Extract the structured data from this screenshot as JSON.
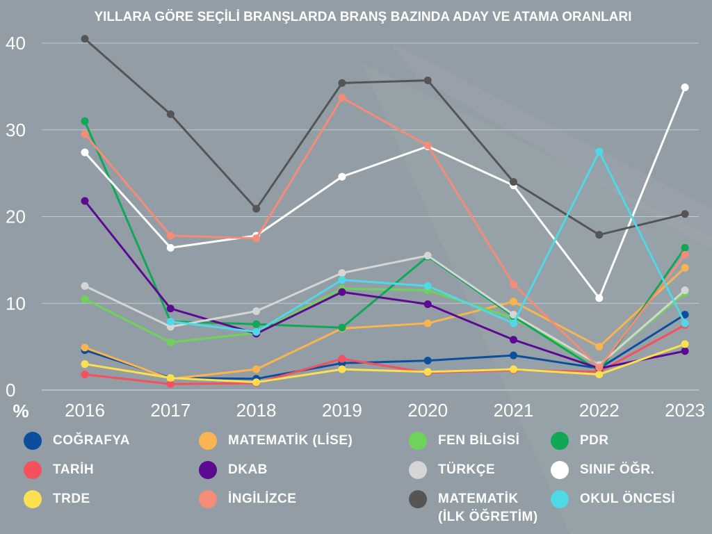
{
  "chart_data": {
    "type": "line",
    "title": "YILLARA GÖRE SEÇİLİ BRANŞLARDA BRANŞ BAZINDA ADAY VE ATAMA ORANLARI",
    "ylabel": "%",
    "xlabel": "",
    "x": [
      "2016",
      "2017",
      "2018",
      "2019",
      "2020",
      "2021",
      "2022",
      "2023"
    ],
    "ylim": [
      0,
      40
    ],
    "yticks": [
      0,
      10,
      20,
      30,
      40
    ],
    "grid": true,
    "legend_position": "bottom",
    "series": [
      {
        "name": "COĞRAFYA",
        "color": "#0b4f9c",
        "values": [
          4.6,
          1.4,
          1.3,
          3.1,
          3.4,
          4.0,
          2.5,
          8.7
        ]
      },
      {
        "name": "MATEMATİK (LİSE)",
        "color": "#f8b451",
        "values": [
          4.9,
          1.3,
          2.4,
          7.1,
          7.7,
          10.2,
          5.0,
          14.1
        ]
      },
      {
        "name": "FEN BİLGİSİ",
        "color": "#6fd35a",
        "values": [
          10.5,
          5.5,
          6.6,
          11.7,
          11.5,
          8.3,
          2.9,
          11.2
        ]
      },
      {
        "name": "PDR",
        "color": "#0ea856",
        "values": [
          31.0,
          7.9,
          7.6,
          7.2,
          15.4,
          8.5,
          2.2,
          16.4
        ]
      },
      {
        "name": "TARİH",
        "color": "#f5505e",
        "values": [
          1.8,
          0.7,
          0.8,
          3.6,
          2.0,
          2.3,
          2.1,
          7.5
        ]
      },
      {
        "name": "DKAB",
        "color": "#5c0a8f",
        "values": [
          21.8,
          9.4,
          6.5,
          11.3,
          9.9,
          5.8,
          2.5,
          4.5
        ]
      },
      {
        "name": "TÜRKÇE",
        "color": "#d5d5d5",
        "values": [
          12.0,
          7.3,
          9.1,
          13.5,
          15.5,
          8.7,
          2.9,
          11.5
        ]
      },
      {
        "name": "SINIF ÖĞR.",
        "color": "#ffffff",
        "values": [
          27.4,
          16.4,
          17.8,
          24.6,
          28.1,
          23.6,
          10.6,
          34.9
        ]
      },
      {
        "name": "TRDE",
        "color": "#fce04f",
        "values": [
          3.0,
          1.4,
          0.9,
          2.4,
          2.1,
          2.4,
          1.8,
          5.3
        ]
      },
      {
        "name": "İNGİLİZCE",
        "color": "#f48c78",
        "values": [
          29.5,
          17.8,
          17.5,
          33.7,
          28.2,
          12.2,
          2.6,
          15.6
        ]
      },
      {
        "name": "MATEMATİK\n(İLK ÖĞRETİM)",
        "color": "#555555",
        "values": [
          40.5,
          31.8,
          20.9,
          35.4,
          35.7,
          24.0,
          17.9,
          20.3
        ]
      },
      {
        "name": "OKUL ÖNCESİ",
        "color": "#4fd9e6",
        "values": [
          null,
          7.9,
          6.7,
          12.7,
          12.0,
          7.7,
          27.5,
          7.7
        ]
      }
    ]
  }
}
